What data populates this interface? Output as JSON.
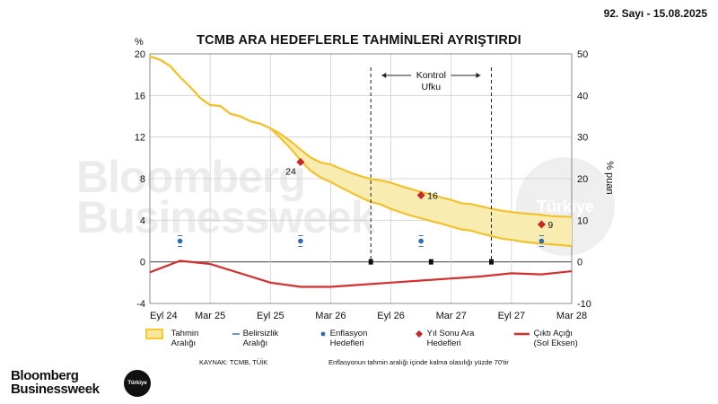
{
  "issue_label": "92. Sayı - 15.08.2025",
  "logo": {
    "line1": "Bloomberg",
    "line2": "Businessweek",
    "badge": "Türkiye"
  },
  "watermark": {
    "line1": "Bloomberg",
    "line2": "Businessweek",
    "badge": "Türkiye"
  },
  "footer": {
    "source": "KAYNAK: TCMB, TÜİK",
    "note": "Enflasyonun tahmin aralığı içinde kalma olasılığı yüzde 70'tir"
  },
  "legend": [
    {
      "id": "range",
      "label": "Tahmin\nAralığı",
      "color": "#f5ca2e"
    },
    {
      "id": "uncertainty",
      "label": "Belirsizlik\nAralığı",
      "color": "#3b6fb6"
    },
    {
      "id": "targets",
      "label": "Enflasyon\nHedefleri",
      "color": "#2b6cb0"
    },
    {
      "id": "interim",
      "label": "Yıl Sonu Ara\nHedefleri",
      "color": "#c62828"
    },
    {
      "id": "gap",
      "label": "Çıktı Açığı\n(Sol Eksen)",
      "color": "#d32f2f"
    }
  ],
  "chart_data": {
    "type": "area",
    "title": "TCMB ARA HEDEFLERLE TAHMİNLERİ AYRIŞTIRDI",
    "ylabel_left": "%",
    "ylabel_right": "% puan",
    "ylim_left": [
      -4,
      20
    ],
    "ylim_right": [
      -10,
      50
    ],
    "y_ticks_left": [
      -4,
      0,
      4,
      8,
      12,
      16,
      20
    ],
    "y_ticks_right": [
      -10,
      0,
      10,
      20,
      30,
      40,
      50
    ],
    "x_tick_labels": [
      "Eyl 24",
      "Mar 25",
      "Eyl 25",
      "Mar 26",
      "Eyl 26",
      "Mar 27",
      "Eyl 27",
      "Mar 28"
    ],
    "grid": true,
    "forecast_band": {
      "axis": "right",
      "x": [
        0,
        1,
        2,
        3,
        4,
        5,
        6,
        7,
        8,
        9,
        10,
        11,
        12,
        13,
        14,
        15,
        16,
        17,
        18,
        19,
        20,
        21,
        22,
        23,
        24,
        25,
        26,
        27,
        28,
        29,
        30,
        31,
        32,
        33,
        34,
        35,
        36,
        37,
        38,
        39,
        40,
        41,
        42
      ],
      "upper": [
        49.4,
        48.6,
        47.1,
        44.4,
        42.1,
        39.4,
        37.7,
        37.5,
        35.6,
        35.0,
        33.8,
        33.2,
        32.1,
        30.8,
        29.0,
        27.0,
        25.1,
        23.9,
        23.4,
        22.4,
        21.4,
        20.6,
        19.9,
        19.6,
        19.0,
        18.2,
        17.5,
        16.8,
        16.2,
        15.5,
        14.9,
        14.1,
        13.9,
        13.3,
        12.8,
        12.3,
        12.0,
        11.7,
        11.5,
        11.3,
        11.0,
        10.9,
        10.8
      ],
      "lower": [
        49.4,
        48.6,
        47.1,
        44.4,
        42.1,
        39.4,
        37.7,
        37.5,
        35.6,
        35.0,
        33.8,
        33.2,
        32.1,
        29.8,
        27.3,
        24.4,
        21.9,
        20.3,
        19.2,
        17.9,
        16.7,
        15.5,
        14.4,
        13.8,
        12.7,
        11.9,
        11.1,
        10.5,
        9.8,
        9.2,
        8.5,
        7.8,
        7.5,
        6.8,
        6.2,
        5.6,
        5.3,
        4.9,
        4.6,
        4.4,
        4.2,
        4.0,
        3.8
      ]
    },
    "interim_targets": [
      {
        "x": 15,
        "value": 24,
        "label": "24"
      },
      {
        "x": 27,
        "value": 16,
        "label": "16"
      },
      {
        "x": 39,
        "value": 9,
        "label": "9"
      }
    ],
    "inflation_targets": [
      {
        "x": 3,
        "value": 5
      },
      {
        "x": 15,
        "value": 5
      },
      {
        "x": 27,
        "value": 5
      },
      {
        "x": 39,
        "value": 5
      }
    ],
    "output_gap": {
      "axis": "left",
      "name": "Çıktı Açığı (Sol Eksen)",
      "x": [
        0,
        3,
        6,
        12,
        15,
        18,
        21,
        24,
        27,
        30,
        33,
        36,
        39,
        42
      ],
      "values": [
        -1.0,
        0.1,
        -0.2,
        -2.0,
        -2.4,
        -2.4,
        -2.2,
        -2.0,
        -1.8,
        -1.6,
        -1.4,
        -1.1,
        -1.2,
        -0.9
      ]
    },
    "control_horizon": {
      "label_line1": "Kontrol",
      "label_line2": "Ufku",
      "x_lines": [
        22,
        34
      ]
    },
    "markers_on_zero": [
      22,
      28,
      34
    ]
  }
}
